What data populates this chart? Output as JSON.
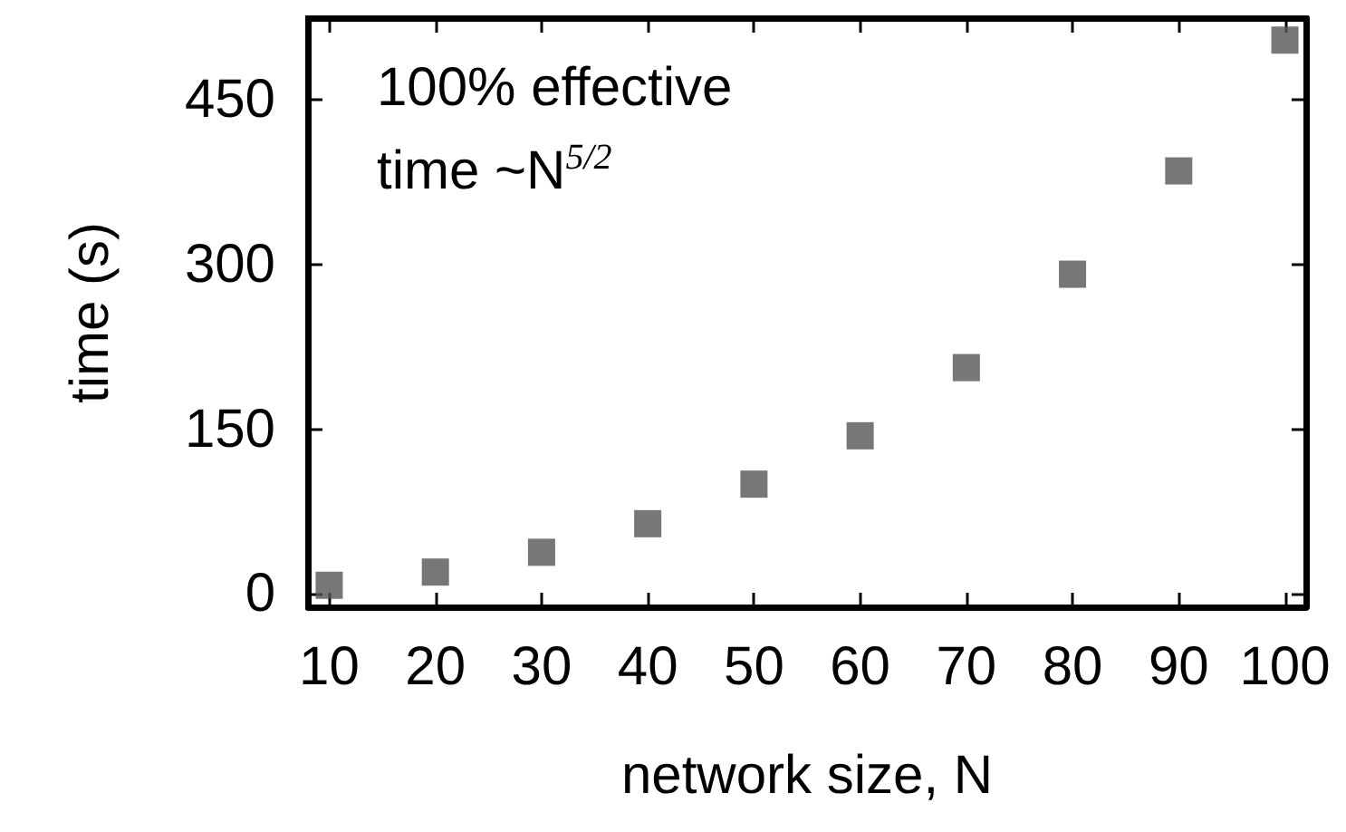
{
  "chart_data": {
    "type": "scatter",
    "xlabel": "network size, N",
    "ylabel": "time (s)",
    "annotations": [
      "100% effective",
      "time ~N$^{5/2}$"
    ],
    "x": [
      10,
      20,
      30,
      40,
      50,
      60,
      70,
      80,
      90,
      100
    ],
    "series": [
      {
        "color": "#555555",
        "values": [
          8,
          20,
          38,
          64,
          100,
          144,
          206,
          291,
          385,
          504
        ]
      }
    ],
    "xlim": [
      8,
      102
    ],
    "xticks": [
      10,
      20,
      30,
      40,
      50,
      60,
      70,
      80,
      90,
      100
    ],
    "ylim": [
      -12,
      524
    ],
    "yticks": [
      0,
      150,
      300,
      450
    ],
    "marker": "square",
    "grid": false
  }
}
